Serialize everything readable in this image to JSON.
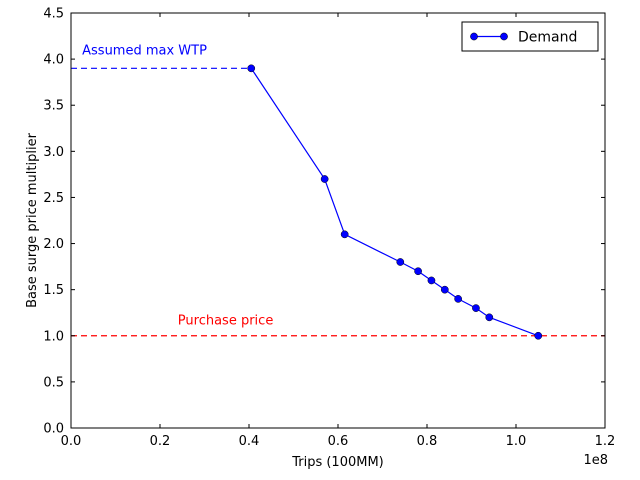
{
  "chart_data": {
    "type": "line",
    "title": "",
    "xlabel": "Trips (100MM)",
    "ylabel": "Base surge price multiplier",
    "x_scale_label": "1e8",
    "xlim": [
      0.0,
      1.2
    ],
    "ylim": [
      0.0,
      4.5
    ],
    "x_ticks": [
      0.0,
      0.2,
      0.4,
      0.6,
      0.8,
      1.0,
      1.2
    ],
    "x_tick_labels": [
      "0.0",
      "0.2",
      "0.4",
      "0.6",
      "0.8",
      "1.0",
      "1.2"
    ],
    "y_ticks": [
      0.0,
      0.5,
      1.0,
      1.5,
      2.0,
      2.5,
      3.0,
      3.5,
      4.0,
      4.5
    ],
    "y_tick_labels": [
      "0.0",
      "0.5",
      "1.0",
      "1.5",
      "2.0",
      "2.5",
      "3.0",
      "3.5",
      "4.0",
      "4.5"
    ],
    "grid": false,
    "legend_position": "top-right",
    "series": [
      {
        "name": "Demand",
        "color": "#0000ff",
        "marker": "circle",
        "x": [
          0.405,
          0.57,
          0.615,
          0.74,
          0.78,
          0.81,
          0.84,
          0.87,
          0.91,
          0.94,
          1.05
        ],
        "y": [
          3.9,
          2.7,
          2.1,
          1.8,
          1.7,
          1.6,
          1.5,
          1.4,
          1.3,
          1.2,
          1.0
        ]
      }
    ],
    "reference_lines": [
      {
        "name": "max-wtp-line",
        "label": "Assumed max WTP",
        "y": 3.9,
        "x_start": 0.0,
        "x_end": 0.405,
        "color": "#0000ff",
        "style": "dashed"
      },
      {
        "name": "purchase-price-line",
        "label": "Purchase price",
        "y": 1.0,
        "x_start": 0.0,
        "x_end": 1.2,
        "color": "#ff0000",
        "style": "dashed"
      }
    ],
    "annotations": [
      {
        "name": "max-wtp-label",
        "text": "Assumed max WTP",
        "x": 0.025,
        "y": 4.05,
        "color": "#0000ff"
      },
      {
        "name": "purchase-price-label",
        "text": "Purchase price",
        "x": 0.24,
        "y": 1.12,
        "color": "#ff0000"
      }
    ]
  }
}
